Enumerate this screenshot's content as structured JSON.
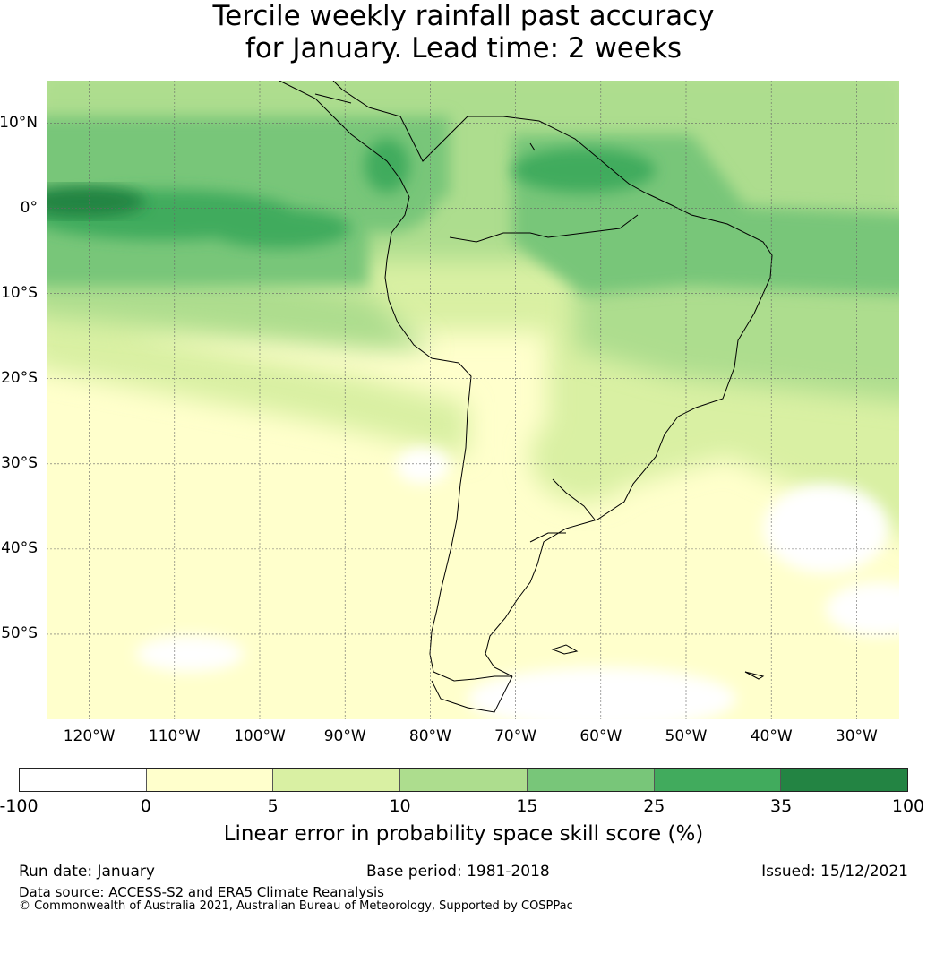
{
  "title": {
    "line1": "Tercile weekly rainfall past accuracy",
    "line2": "for January. Lead time: 2 weeks"
  },
  "map": {
    "region": "South America",
    "extent": {
      "lon_min": -125,
      "lon_max": -25,
      "lat_min": -60,
      "lat_max": 15
    },
    "lat_ticks": [
      {
        "value": 10,
        "label": "10°N"
      },
      {
        "value": 0,
        "label": "0°"
      },
      {
        "value": -10,
        "label": "10°S"
      },
      {
        "value": -20,
        "label": "20°S"
      },
      {
        "value": -30,
        "label": "30°S"
      },
      {
        "value": -40,
        "label": "40°S"
      },
      {
        "value": -50,
        "label": "50°S"
      }
    ],
    "lon_ticks": [
      {
        "value": -120,
        "label": "120°W"
      },
      {
        "value": -110,
        "label": "110°W"
      },
      {
        "value": -100,
        "label": "100°W"
      },
      {
        "value": -90,
        "label": "90°W"
      },
      {
        "value": -80,
        "label": "80°W"
      },
      {
        "value": -70,
        "label": "70°W"
      },
      {
        "value": -60,
        "label": "60°W"
      },
      {
        "value": -50,
        "label": "50°W"
      },
      {
        "value": -40,
        "label": "40°W"
      },
      {
        "value": -30,
        "label": "30°W"
      }
    ],
    "gridlines": true
  },
  "colorbar": {
    "ticks": [
      "-100",
      "0",
      "5",
      "10",
      "15",
      "25",
      "35",
      "100"
    ],
    "colors": [
      "#ffffff",
      "#ffffcc",
      "#d9f0a3",
      "#addd8e",
      "#78c679",
      "#41ab5d",
      "#238443"
    ],
    "label": "Linear error in probability space skill score (%)"
  },
  "footer": {
    "run_date": "Run date: January",
    "base_period": "Base period: 1981-2018",
    "issued": "Issued: 15/12/2021",
    "data_source": "Data source: ACCESS-S2 and ERA5 Climate Reanalysis",
    "copyright": "© Commonwealth of Australia 2021, Australian Bureau of Meteorology, Supported by COSPPac"
  }
}
